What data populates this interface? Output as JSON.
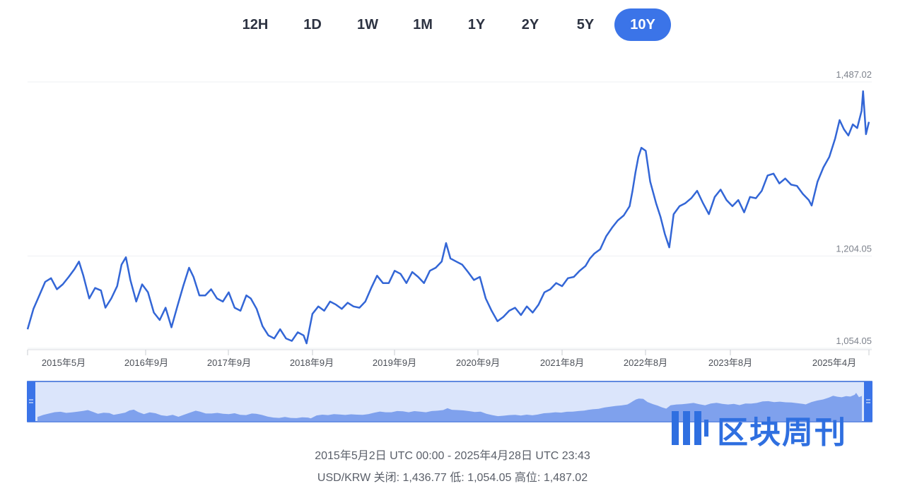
{
  "tabs": [
    {
      "label": "12H",
      "active": false
    },
    {
      "label": "1D",
      "active": false
    },
    {
      "label": "1W",
      "active": false
    },
    {
      "label": "1M",
      "active": false
    },
    {
      "label": "1Y",
      "active": false
    },
    {
      "label": "2Y",
      "active": false
    },
    {
      "label": "5Y",
      "active": false
    },
    {
      "label": "10Y",
      "active": true
    }
  ],
  "colors": {
    "accent": "#3b74e8",
    "line": "#3366d6",
    "navigator_fill": "#dbe5fb"
  },
  "chart_data": {
    "type": "line",
    "series": [
      {
        "values": [
          [
            0,
            1085
          ],
          [
            4,
            1118
          ],
          [
            8,
            1140
          ],
          [
            12,
            1162
          ],
          [
            16,
            1168
          ],
          [
            20,
            1150
          ],
          [
            24,
            1158
          ],
          [
            28,
            1170
          ],
          [
            32,
            1183
          ],
          [
            35,
            1195
          ],
          [
            38,
            1172
          ],
          [
            42,
            1135
          ],
          [
            46,
            1152
          ],
          [
            50,
            1148
          ],
          [
            53,
            1120
          ],
          [
            57,
            1135
          ],
          [
            61,
            1155
          ],
          [
            64,
            1190
          ],
          [
            67,
            1202
          ],
          [
            70,
            1165
          ],
          [
            74,
            1130
          ],
          [
            78,
            1158
          ],
          [
            82,
            1145
          ],
          [
            86,
            1112
          ],
          [
            90,
            1100
          ],
          [
            94,
            1120
          ],
          [
            98,
            1088
          ],
          [
            102,
            1122
          ],
          [
            106,
            1155
          ],
          [
            110,
            1185
          ],
          [
            113,
            1170
          ],
          [
            117,
            1140
          ],
          [
            121,
            1140
          ],
          [
            125,
            1150
          ],
          [
            129,
            1135
          ],
          [
            133,
            1130
          ],
          [
            137,
            1145
          ],
          [
            141,
            1120
          ],
          [
            145,
            1115
          ],
          [
            149,
            1140
          ],
          [
            152,
            1135
          ],
          [
            156,
            1118
          ],
          [
            160,
            1090
          ],
          [
            164,
            1075
          ],
          [
            168,
            1070
          ],
          [
            172,
            1085
          ],
          [
            176,
            1070
          ],
          [
            180,
            1066
          ],
          [
            184,
            1080
          ],
          [
            188,
            1075
          ],
          [
            190,
            1062
          ],
          [
            194,
            1110
          ],
          [
            198,
            1122
          ],
          [
            202,
            1115
          ],
          [
            206,
            1130
          ],
          [
            210,
            1125
          ],
          [
            214,
            1118
          ],
          [
            218,
            1128
          ],
          [
            222,
            1122
          ],
          [
            226,
            1120
          ],
          [
            230,
            1130
          ],
          [
            234,
            1152
          ],
          [
            238,
            1172
          ],
          [
            242,
            1160
          ],
          [
            246,
            1160
          ],
          [
            250,
            1180
          ],
          [
            254,
            1175
          ],
          [
            258,
            1160
          ],
          [
            262,
            1178
          ],
          [
            266,
            1170
          ],
          [
            270,
            1160
          ],
          [
            274,
            1180
          ],
          [
            278,
            1185
          ],
          [
            282,
            1195
          ],
          [
            285,
            1225
          ],
          [
            288,
            1200
          ],
          [
            292,
            1195
          ],
          [
            296,
            1190
          ],
          [
            300,
            1178
          ],
          [
            304,
            1165
          ],
          [
            308,
            1170
          ],
          [
            312,
            1135
          ],
          [
            316,
            1115
          ],
          [
            320,
            1098
          ],
          [
            324,
            1105
          ],
          [
            328,
            1115
          ],
          [
            332,
            1120
          ],
          [
            336,
            1108
          ],
          [
            340,
            1122
          ],
          [
            344,
            1112
          ],
          [
            348,
            1125
          ],
          [
            352,
            1145
          ],
          [
            356,
            1150
          ],
          [
            360,
            1160
          ],
          [
            364,
            1155
          ],
          [
            368,
            1168
          ],
          [
            372,
            1170
          ],
          [
            376,
            1180
          ],
          [
            380,
            1188
          ],
          [
            383,
            1200
          ],
          [
            386,
            1208
          ],
          [
            390,
            1215
          ],
          [
            394,
            1236
          ],
          [
            398,
            1250
          ],
          [
            402,
            1262
          ],
          [
            406,
            1270
          ],
          [
            410,
            1285
          ],
          [
            412,
            1310
          ],
          [
            414,
            1340
          ],
          [
            416,
            1365
          ],
          [
            418,
            1380
          ],
          [
            421,
            1375
          ],
          [
            424,
            1325
          ],
          [
            428,
            1290
          ],
          [
            431,
            1268
          ],
          [
            434,
            1240
          ],
          [
            437,
            1218
          ],
          [
            440,
            1272
          ],
          [
            444,
            1285
          ],
          [
            448,
            1290
          ],
          [
            452,
            1298
          ],
          [
            456,
            1310
          ],
          [
            460,
            1290
          ],
          [
            464,
            1272
          ],
          [
            468,
            1300
          ],
          [
            472,
            1312
          ],
          [
            476,
            1295
          ],
          [
            480,
            1285
          ],
          [
            484,
            1295
          ],
          [
            488,
            1275
          ],
          [
            492,
            1300
          ],
          [
            496,
            1298
          ],
          [
            500,
            1310
          ],
          [
            504,
            1335
          ],
          [
            508,
            1338
          ],
          [
            512,
            1322
          ],
          [
            516,
            1330
          ],
          [
            520,
            1320
          ],
          [
            524,
            1318
          ],
          [
            528,
            1305
          ],
          [
            532,
            1295
          ],
          [
            534,
            1286
          ],
          [
            538,
            1325
          ],
          [
            542,
            1348
          ],
          [
            546,
            1365
          ],
          [
            550,
            1395
          ],
          [
            553,
            1425
          ],
          [
            556,
            1410
          ],
          [
            559,
            1400
          ],
          [
            562,
            1418
          ],
          [
            565,
            1412
          ],
          [
            568,
            1440
          ],
          [
            569,
            1472
          ],
          [
            571,
            1402
          ],
          [
            573,
            1422
          ]
        ],
        "x_unit": "weeks since 2015年5月2日"
      }
    ],
    "x_ticks": [
      "2015年5月",
      "2016年9月",
      "2017年9月",
      "2018年9月",
      "2019年9月",
      "2020年9月",
      "2021年8月",
      "2022年8月",
      "2023年8月",
      "2025年4月"
    ],
    "y_labels": [
      "1,487.02",
      "1,204.05",
      "1,054.05"
    ],
    "ylim": [
      1054.05,
      1487.02
    ],
    "grid": true
  },
  "footer": {
    "range": "2015年5月2日 UTC 00:00 - 2025年4月28日 UTC 23:43",
    "pair": "USD/KRW",
    "close_label": "关闭:",
    "close_value": "1,436.77",
    "low_label": "低:",
    "low_value": "1,054.05",
    "high_label": "高位:",
    "high_value": "1,487.02"
  },
  "watermark": {
    "text": "区块周刊"
  }
}
